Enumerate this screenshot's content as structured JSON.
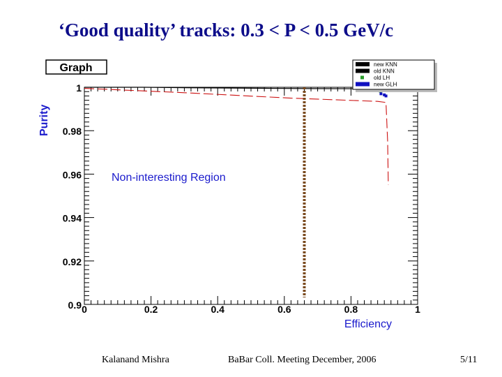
{
  "slide": {
    "title": "‘Good quality’ tracks:  0.3 < P < 0.5 GeV/c",
    "footer_left": "Kalanand Mishra",
    "footer_center": "BaBar Coll. Meeting December, 2006",
    "footer_right": "5/11"
  },
  "chart_data": {
    "type": "line",
    "title": "Graph",
    "xlabel": "Efficiency",
    "ylabel": "Purity",
    "xlim": [
      0,
      1
    ],
    "ylim": [
      0.9,
      1.0
    ],
    "xticks": [
      "0",
      "0.2",
      "0.4",
      "0.6",
      "0.8",
      "1"
    ],
    "yticks": [
      "0.9",
      "0.92",
      "0.94",
      "0.96",
      "0.98",
      "1"
    ],
    "grid": false,
    "legend": {
      "placement": "top-right",
      "entries": [
        {
          "name": "new KNN",
          "color": "#000000",
          "marker": "line"
        },
        {
          "name": "old KNN",
          "color": "#000000",
          "marker": "line"
        },
        {
          "name": "old LH",
          "color": "#2a9d2a",
          "marker": "square"
        },
        {
          "name": "new GLH",
          "color": "#1010c0",
          "marker": "line"
        }
      ]
    },
    "annotation": {
      "text": "Non-interesting Region",
      "color": "#1a1acc"
    },
    "vline": {
      "x": 0.66,
      "color": "#7a4a1e",
      "style": "dotted"
    },
    "series": [
      {
        "color": "#000000",
        "style": "solid",
        "x": [
          0.0,
          0.18,
          0.3,
          0.56,
          0.68,
          0.88
        ],
        "y": [
          1.0,
          1.0,
          0.9998,
          0.9995,
          0.9994,
          0.9993
        ]
      },
      {
        "color": "#cc1111",
        "style": "dashed",
        "x": [
          0.0,
          0.3,
          0.62,
          0.88,
          0.905,
          0.91,
          0.912
        ],
        "y": [
          0.9995,
          0.9975,
          0.995,
          0.9935,
          0.993,
          0.975,
          0.955
        ]
      },
      {
        "color": "#2a9d2a",
        "style": "markers",
        "x": [
          0.885,
          0.888
        ],
        "y": [
          0.9985,
          0.9982
        ]
      },
      {
        "color": "#1010c0",
        "style": "markers",
        "x": [
          0.89,
          0.9,
          0.905
        ],
        "y": [
          0.997,
          0.9965,
          0.996
        ]
      }
    ]
  }
}
